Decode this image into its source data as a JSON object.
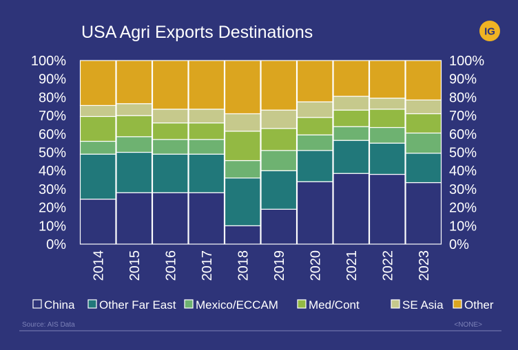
{
  "header": {
    "title": "USA Agri Exports Destinations",
    "logo_text": "IG"
  },
  "footer": {
    "source": "Source: AIS Data",
    "note": "<NONE>"
  },
  "colors": {
    "background": "#2e3479",
    "plot_background": "#ffffff",
    "gridline": "#d4d4d4",
    "logo": "#f0b323"
  },
  "chart_data": {
    "type": "bar",
    "stacked": true,
    "normalized": true,
    "title": "USA Agri Exports Destinations",
    "xlabel": "",
    "ylabel": "",
    "ylim": [
      0,
      100
    ],
    "yticks": [
      "0%",
      "10%",
      "20%",
      "30%",
      "40%",
      "50%",
      "60%",
      "70%",
      "80%",
      "90%",
      "100%"
    ],
    "y_axis_both_sides": true,
    "grid": true,
    "legend_position": "bottom",
    "categories": [
      "2014",
      "2015",
      "2016",
      "2017",
      "2018",
      "2019",
      "2020",
      "2021",
      "2022",
      "2023"
    ],
    "series": [
      {
        "name": "China",
        "color": "#2e3479",
        "values": [
          24.5,
          28,
          28,
          28,
          10,
          19,
          34,
          38.5,
          38,
          33.5
        ]
      },
      {
        "name": "Other Far East",
        "color": "#21787a",
        "values": [
          24.5,
          22,
          21,
          21,
          26,
          21,
          17,
          18,
          17,
          16
        ]
      },
      {
        "name": "Mexico/ECCAM",
        "color": "#6eb271",
        "values": [
          7,
          8.5,
          8,
          8,
          9.5,
          11,
          8.5,
          7.5,
          8.5,
          11
        ]
      },
      {
        "name": "Med/Cont",
        "color": "#93b943",
        "values": [
          13.5,
          11.5,
          9,
          9,
          16,
          12,
          9.5,
          9,
          10,
          10.5
        ]
      },
      {
        "name": "SE Asia",
        "color": "#c6c98c",
        "values": [
          6,
          6.5,
          7.5,
          7.5,
          9.5,
          10,
          8.5,
          7.5,
          6,
          7.5
        ]
      },
      {
        "name": "Other",
        "color": "#dba51f",
        "values": [
          24.5,
          23.5,
          26.5,
          26.5,
          29,
          27,
          22.5,
          19.5,
          20.5,
          21.5
        ]
      }
    ]
  }
}
